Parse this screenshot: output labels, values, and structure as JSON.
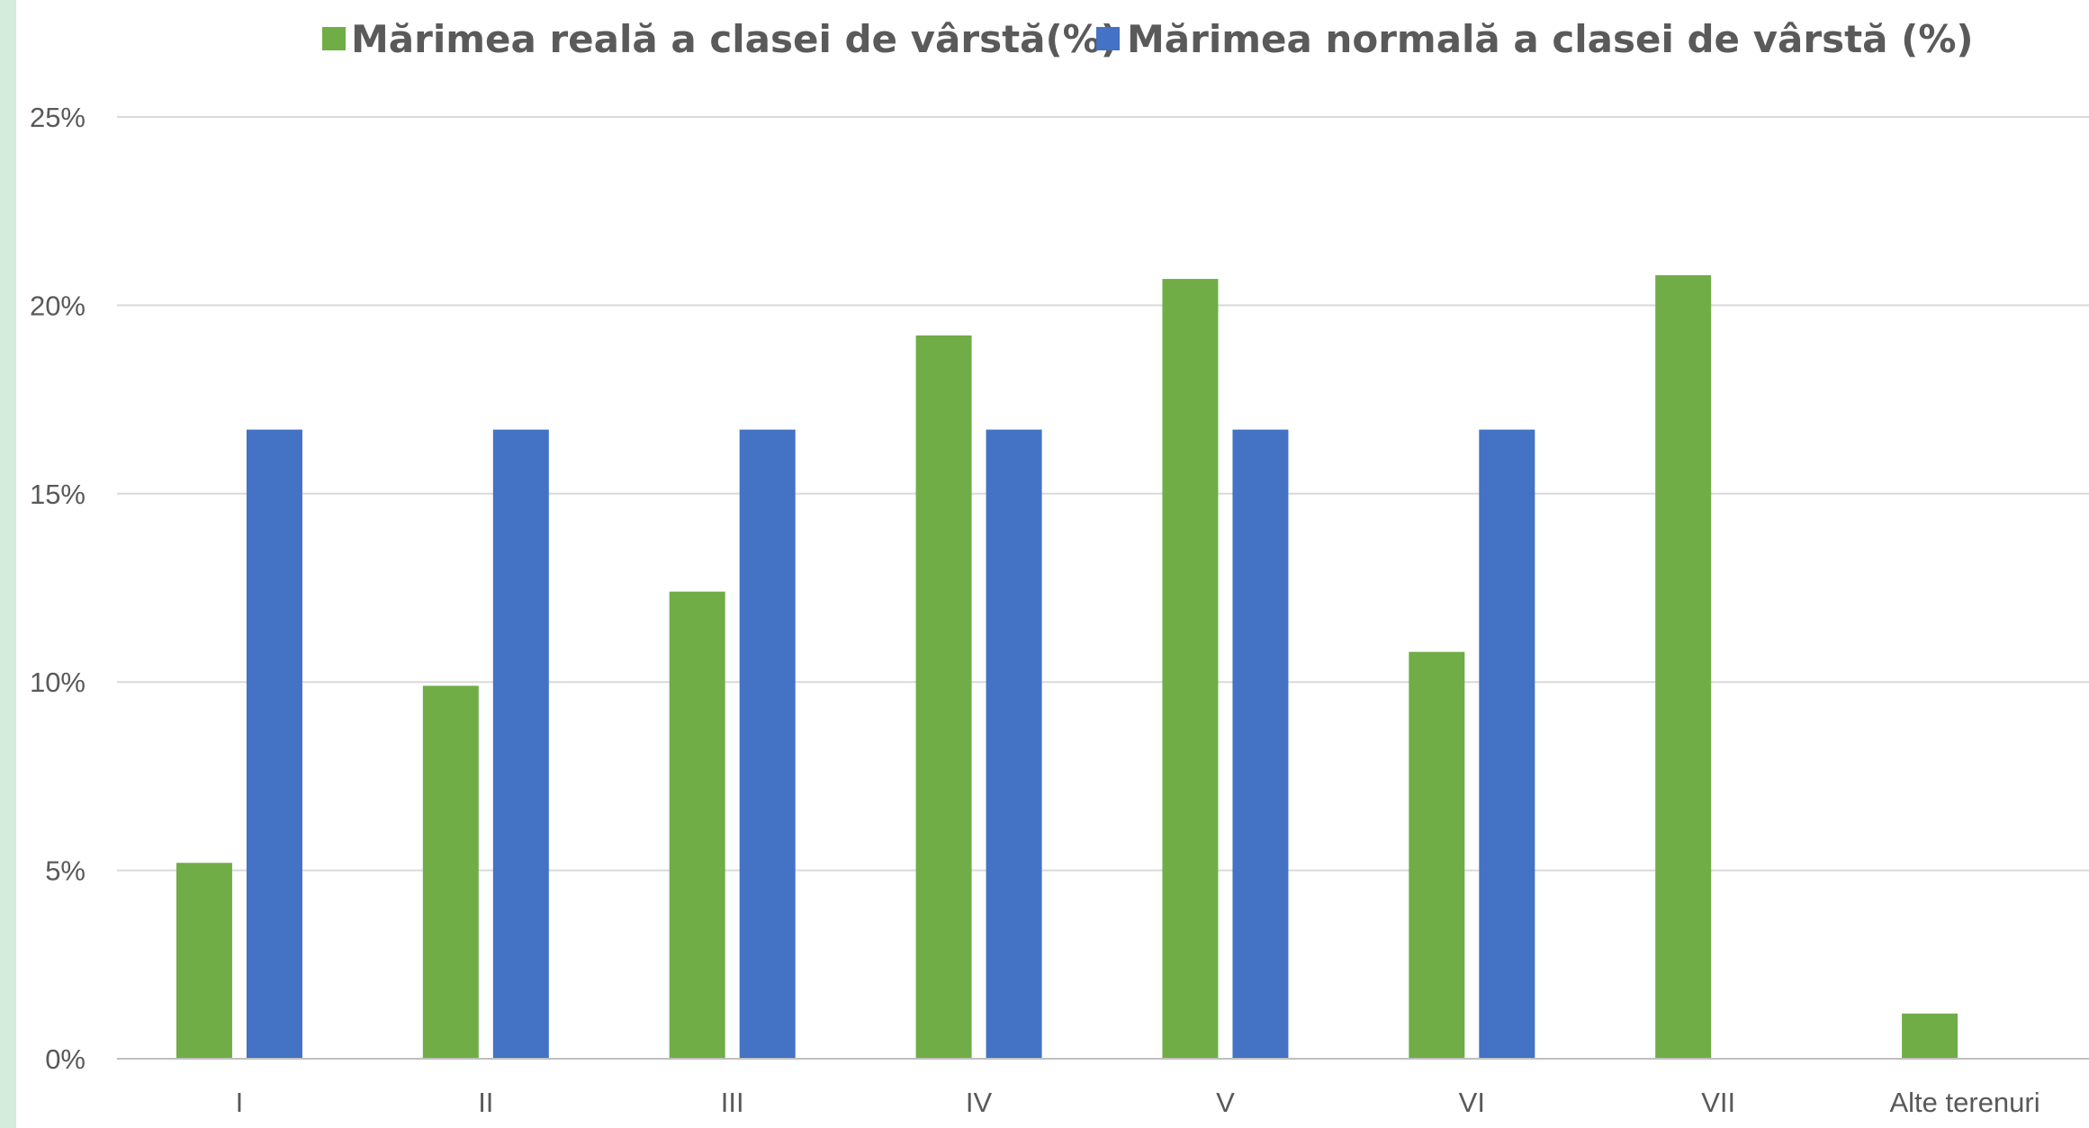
{
  "chart_data": {
    "type": "bar",
    "title": "",
    "xlabel": "",
    "ylabel": "",
    "categories": [
      "I",
      "II",
      "III",
      "IV",
      "V",
      "VI",
      "VII",
      "Alte terenuri"
    ],
    "series": [
      {
        "name": "Mărimea reală a clasei de vârstă(%)",
        "color": "#70ad47",
        "values": [
          5.2,
          9.9,
          12.4,
          19.2,
          20.7,
          10.8,
          20.8,
          1.2
        ]
      },
      {
        "name": "Mărimea normală a clasei de vârstă (%)",
        "color": "#4472c4",
        "values": [
          16.7,
          16.7,
          16.7,
          16.7,
          16.7,
          16.7,
          null,
          null
        ]
      }
    ],
    "ylim": [
      0,
      25
    ],
    "y_ticks": [
      0,
      5,
      10,
      15,
      20,
      25
    ],
    "y_tick_labels": [
      "0%",
      "5%",
      "10%",
      "15%",
      "20%",
      "25%"
    ],
    "grid": true,
    "legend_position": "top"
  }
}
